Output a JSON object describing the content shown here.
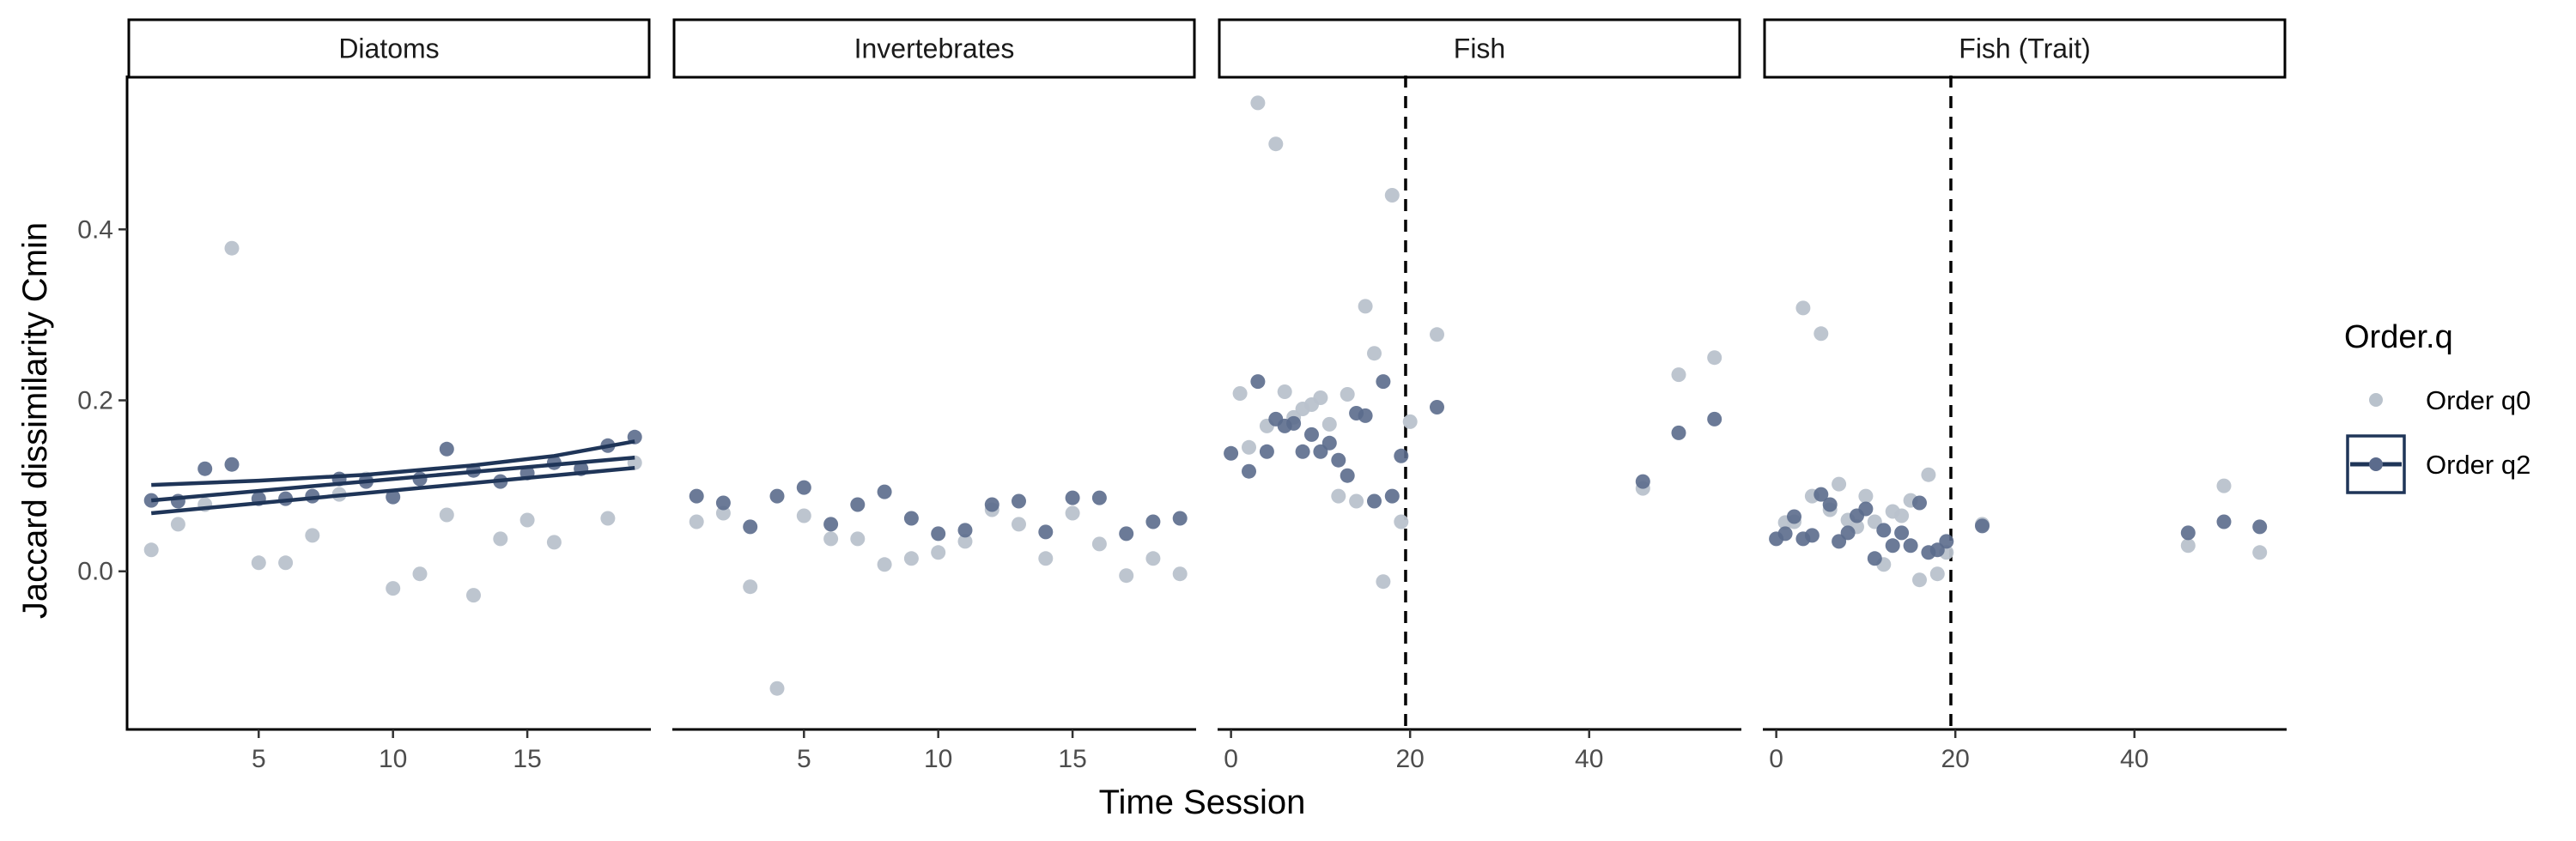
{
  "chart_data": {
    "type": "scatter",
    "xlabel": "Time Session",
    "ylabel": "Jaccard dissimilarity Cmin",
    "ylim": [
      -0.185,
      0.58
    ],
    "yticks": [
      0.0,
      0.2,
      0.4
    ],
    "legend": {
      "title": "Order.q",
      "placement": "right",
      "entries": [
        {
          "label": "Order q0",
          "color": "#b9c2cc"
        },
        {
          "label": "Order q2",
          "color": "#5b6b8c"
        }
      ]
    },
    "colors": {
      "q0": "#b9c2cc",
      "q2": "#5b6b8c",
      "line": "#1f3558"
    },
    "panels": [
      {
        "strip": "Diatoms",
        "xlim": [
          0.1,
          19.6
        ],
        "xticks": [
          5,
          10,
          15
        ],
        "vline": null,
        "series": [
          {
            "name": "Order q0",
            "points": [
              [
                1,
                0.025
              ],
              [
                2,
                0.055
              ],
              [
                3,
                0.078
              ],
              [
                4,
                0.378
              ],
              [
                5,
                0.01
              ],
              [
                6,
                0.01
              ],
              [
                7,
                0.042
              ],
              [
                8,
                0.09
              ],
              [
                9,
                0.108
              ],
              [
                10,
                -0.02
              ],
              [
                11,
                -0.003
              ],
              [
                12,
                0.066
              ],
              [
                13,
                -0.028
              ],
              [
                14,
                0.038
              ],
              [
                15,
                0.06
              ],
              [
                16,
                0.034
              ],
              [
                17,
                0.12
              ],
              [
                18,
                0.062
              ],
              [
                19,
                0.127
              ]
            ]
          },
          {
            "name": "Order q2",
            "points": [
              [
                1,
                0.083
              ],
              [
                2,
                0.082
              ],
              [
                3,
                0.12
              ],
              [
                4,
                0.125
              ],
              [
                5,
                0.085
              ],
              [
                6,
                0.085
              ],
              [
                7,
                0.088
              ],
              [
                8,
                0.108
              ],
              [
                9,
                0.105
              ],
              [
                10,
                0.087
              ],
              [
                11,
                0.108
              ],
              [
                12,
                0.143
              ],
              [
                13,
                0.118
              ],
              [
                14,
                0.105
              ],
              [
                15,
                0.115
              ],
              [
                16,
                0.127
              ],
              [
                17,
                0.12
              ],
              [
                18,
                0.147
              ],
              [
                19,
                0.157
              ]
            ]
          }
        ],
        "trend_lines": [
          [
            [
              1,
              0.083
            ],
            [
              19,
              0.133
            ]
          ],
          [
            [
              1,
              0.068
            ],
            [
              19,
              0.121
            ]
          ],
          [
            [
              1,
              0.101
            ],
            [
              5,
              0.106
            ],
            [
              9,
              0.113
            ],
            [
              13,
              0.124
            ],
            [
              16,
              0.135
            ],
            [
              19,
              0.152
            ]
          ]
        ]
      },
      {
        "strip": "Invertebrates",
        "xlim": [
          0.1,
          19.6
        ],
        "xticks": [
          5,
          10,
          15
        ],
        "vline": null,
        "series": [
          {
            "name": "Order q0",
            "points": [
              [
                1,
                0.058
              ],
              [
                2,
                0.068
              ],
              [
                3,
                -0.018
              ],
              [
                4,
                -0.137
              ],
              [
                5,
                0.065
              ],
              [
                6,
                0.038
              ],
              [
                7,
                0.038
              ],
              [
                8,
                0.008
              ],
              [
                9,
                0.015
              ],
              [
                10,
                0.022
              ],
              [
                11,
                0.035
              ],
              [
                12,
                0.072
              ],
              [
                13,
                0.055
              ],
              [
                14,
                0.015
              ],
              [
                15,
                0.068
              ],
              [
                16,
                0.032
              ],
              [
                17,
                -0.005
              ],
              [
                18,
                0.015
              ],
              [
                19,
                -0.003
              ]
            ]
          },
          {
            "name": "Order q2",
            "points": [
              [
                1,
                0.088
              ],
              [
                2,
                0.08
              ],
              [
                3,
                0.052
              ],
              [
                4,
                0.088
              ],
              [
                5,
                0.098
              ],
              [
                6,
                0.055
              ],
              [
                7,
                0.078
              ],
              [
                8,
                0.093
              ],
              [
                9,
                0.062
              ],
              [
                10,
                0.044
              ],
              [
                11,
                0.048
              ],
              [
                12,
                0.078
              ],
              [
                13,
                0.082
              ],
              [
                14,
                0.046
              ],
              [
                15,
                0.086
              ],
              [
                16,
                0.086
              ],
              [
                17,
                0.044
              ],
              [
                18,
                0.058
              ],
              [
                19,
                0.062
              ]
            ]
          }
        ],
        "trend_lines": []
      },
      {
        "strip": "Fish",
        "xlim": [
          -1.5,
          57
        ],
        "xticks": [
          0,
          20,
          40
        ],
        "vline": 19.5,
        "series": [
          {
            "name": "Order q0",
            "points": [
              [
                1,
                0.208
              ],
              [
                2,
                0.145
              ],
              [
                3,
                0.548
              ],
              [
                4,
                0.17
              ],
              [
                5,
                0.5
              ],
              [
                6,
                0.21
              ],
              [
                7,
                0.18
              ],
              [
                8,
                0.19
              ],
              [
                9,
                0.195
              ],
              [
                10,
                0.203
              ],
              [
                11,
                0.172
              ],
              [
                12,
                0.088
              ],
              [
                13,
                0.207
              ],
              [
                14,
                0.082
              ],
              [
                15,
                0.31
              ],
              [
                16,
                0.255
              ],
              [
                17,
                -0.012
              ],
              [
                18,
                0.44
              ],
              [
                19,
                0.058
              ],
              [
                20,
                0.175
              ],
              [
                23,
                0.277
              ],
              [
                46,
                0.097
              ],
              [
                50,
                0.23
              ],
              [
                54,
                0.25
              ]
            ]
          },
          {
            "name": "Order q2",
            "points": [
              [
                0,
                0.138
              ],
              [
                2,
                0.117
              ],
              [
                3,
                0.222
              ],
              [
                4,
                0.14
              ],
              [
                5,
                0.178
              ],
              [
                6,
                0.17
              ],
              [
                7,
                0.173
              ],
              [
                8,
                0.14
              ],
              [
                9,
                0.16
              ],
              [
                10,
                0.14
              ],
              [
                11,
                0.15
              ],
              [
                12,
                0.13
              ],
              [
                13,
                0.112
              ],
              [
                14,
                0.185
              ],
              [
                15,
                0.182
              ],
              [
                16,
                0.082
              ],
              [
                17,
                0.222
              ],
              [
                18,
                0.088
              ],
              [
                19,
                0.135
              ],
              [
                23,
                0.192
              ],
              [
                46,
                0.105
              ],
              [
                50,
                0.162
              ],
              [
                54,
                0.178
              ]
            ]
          }
        ],
        "trend_lines": []
      },
      {
        "strip": "Fish (Trait)",
        "xlim": [
          -1.5,
          57
        ],
        "xticks": [
          0,
          20,
          40
        ],
        "vline": 19.5,
        "series": [
          {
            "name": "Order q0",
            "points": [
              [
                1,
                0.057
              ],
              [
                2,
                0.058
              ],
              [
                3,
                0.308
              ],
              [
                4,
                0.088
              ],
              [
                5,
                0.278
              ],
              [
                6,
                0.072
              ],
              [
                7,
                0.102
              ],
              [
                8,
                0.06
              ],
              [
                9,
                0.052
              ],
              [
                10,
                0.088
              ],
              [
                11,
                0.058
              ],
              [
                12,
                0.008
              ],
              [
                13,
                0.07
              ],
              [
                14,
                0.065
              ],
              [
                15,
                0.083
              ],
              [
                16,
                -0.01
              ],
              [
                17,
                0.113
              ],
              [
                18,
                -0.003
              ],
              [
                19,
                0.022
              ],
              [
                23,
                0.055
              ],
              [
                46,
                0.03
              ],
              [
                50,
                0.1
              ],
              [
                54,
                0.022
              ]
            ]
          },
          {
            "name": "Order q2",
            "points": [
              [
                0,
                0.038
              ],
              [
                1,
                0.044
              ],
              [
                2,
                0.064
              ],
              [
                3,
                0.038
              ],
              [
                4,
                0.042
              ],
              [
                5,
                0.09
              ],
              [
                6,
                0.078
              ],
              [
                7,
                0.035
              ],
              [
                8,
                0.045
              ],
              [
                9,
                0.065
              ],
              [
                10,
                0.073
              ],
              [
                11,
                0.015
              ],
              [
                12,
                0.048
              ],
              [
                13,
                0.03
              ],
              [
                14,
                0.045
              ],
              [
                15,
                0.03
              ],
              [
                16,
                0.08
              ],
              [
                17,
                0.022
              ],
              [
                18,
                0.025
              ],
              [
                19,
                0.035
              ],
              [
                23,
                0.053
              ],
              [
                46,
                0.045
              ],
              [
                50,
                0.058
              ],
              [
                54,
                0.052
              ]
            ]
          }
        ],
        "trend_lines": []
      }
    ]
  }
}
